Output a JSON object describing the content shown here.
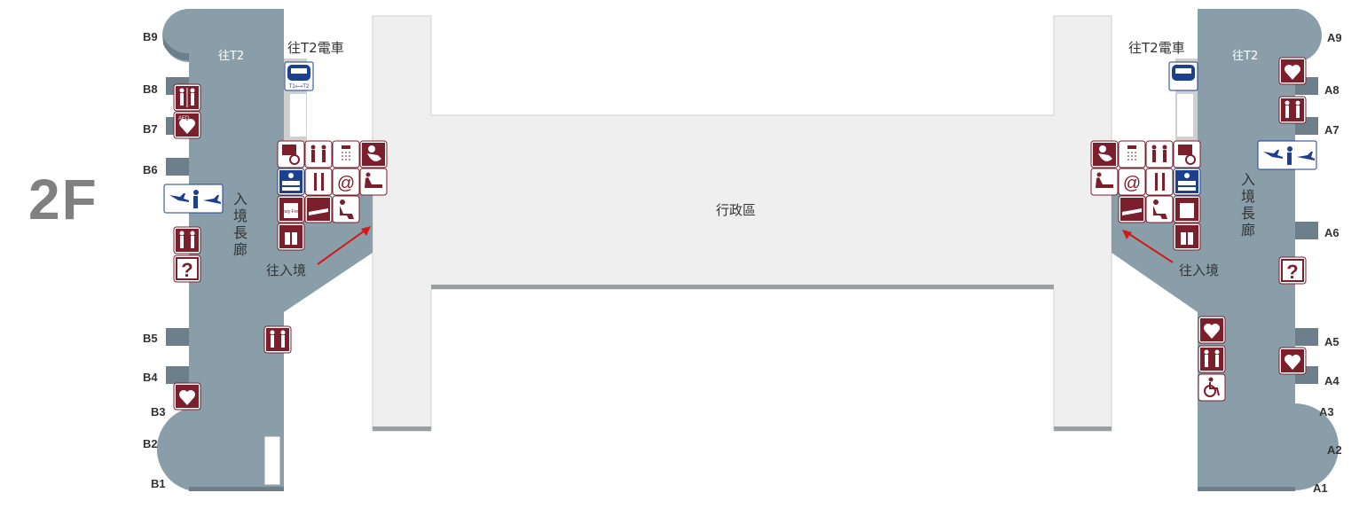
{
  "floor_label": "2F",
  "admin_area": "行政區",
  "left": {
    "to_t2": "往T2",
    "train": "往T2電車",
    "corridor": "入境長廊",
    "to_arrival": "往入境",
    "gates": [
      "B9",
      "B8",
      "B7",
      "B6",
      "B5",
      "B4",
      "B3",
      "B2",
      "B1"
    ]
  },
  "right": {
    "to_t2": "往T2",
    "train": "往T2電車",
    "corridor": "入境長廊",
    "to_arrival": "往入境",
    "gates": [
      "A9",
      "A8",
      "A7",
      "A6",
      "A5",
      "A4",
      "A3",
      "A2",
      "A1"
    ]
  },
  "icon_text": {
    "train": "T1⟷T2",
    "aed": "AED",
    "duty": "Duty Free",
    "info": "?",
    "at": "@"
  },
  "colors": {
    "terminal": "#8a9eaa",
    "terminal_dark": "#6c7f8a",
    "icon": "#7a1f2b",
    "blue_icon": "#1d3f8f",
    "corridor": "#efefef"
  }
}
